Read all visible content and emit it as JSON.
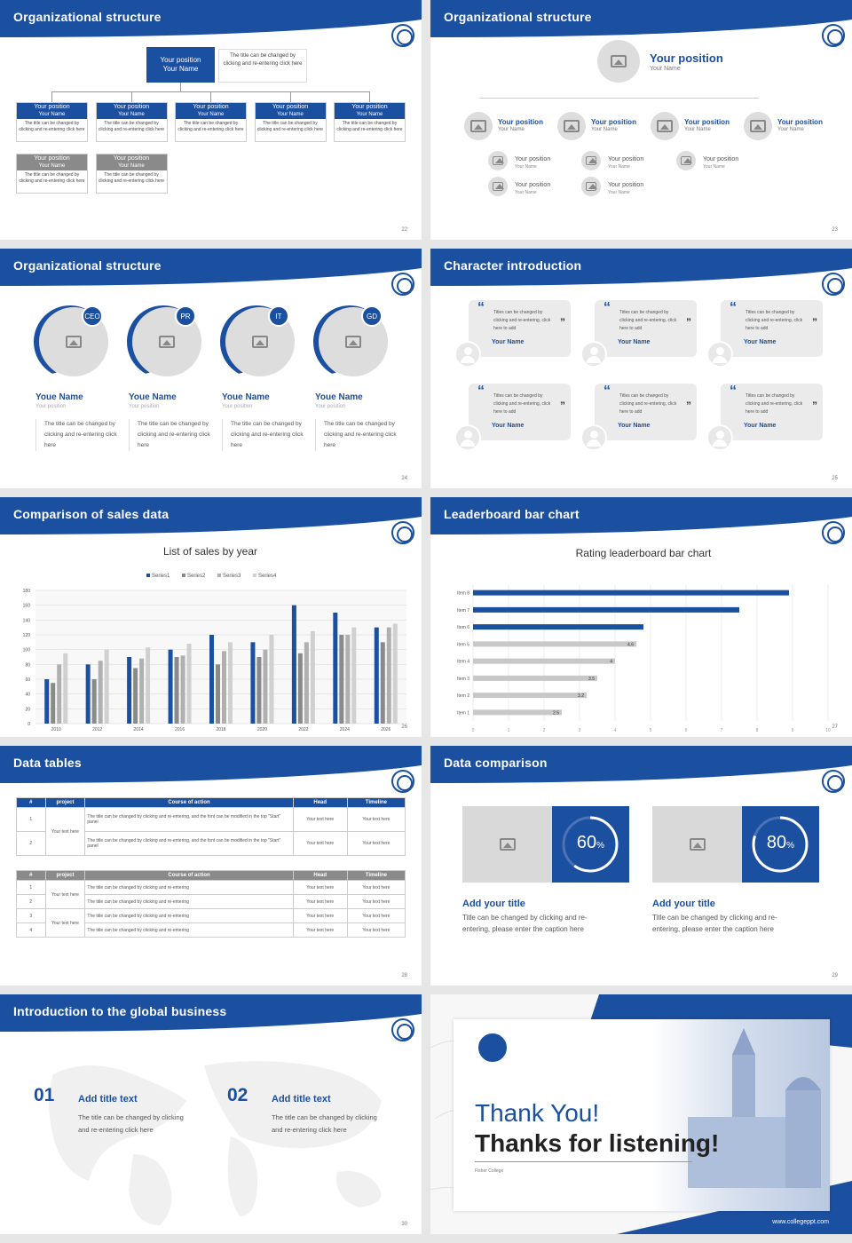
{
  "slides": {
    "s22": {
      "title": "Organizational structure",
      "page": "22",
      "top": {
        "pos": "Your position",
        "name": "Your Name",
        "desc": "The title can be changed by clicking and re-entering click here"
      },
      "cards": [
        {
          "pos": "Your position",
          "name": "Your Name",
          "desc": "The title can be changed by clicking and re-entering click here"
        },
        {
          "pos": "Your position",
          "name": "Your Name",
          "desc": "The title can be changed by clicking and re-entering click here"
        },
        {
          "pos": "Your position",
          "name": "Your Name",
          "desc": "The title can be changed by clicking and re-entering click here"
        },
        {
          "pos": "Your position",
          "name": "Your Name",
          "desc": "The title can be changed by clicking and re-entering click here"
        },
        {
          "pos": "Your position",
          "name": "Your Name",
          "desc": "The title can be changed by clicking and re-entering click here"
        },
        {
          "pos": "Your position",
          "name": "Your Name",
          "desc": "The title can be changed by clicking and re-entering click here"
        },
        {
          "pos": "Your position",
          "name": "Your Name",
          "desc": "The title can be changed by clicking and re-entering click here"
        }
      ]
    },
    "s23": {
      "title": "Organizational structure",
      "page": "23",
      "top_pos": "Your position",
      "top_name": "Your Name",
      "row": [
        {
          "pos": "Your position",
          "name": "Your Name"
        },
        {
          "pos": "Your position",
          "name": "Your Name"
        },
        {
          "pos": "Your position",
          "name": "Your Name"
        },
        {
          "pos": "Your position",
          "name": "Your Name"
        }
      ],
      "sub": [
        {
          "pos": "Your position",
          "name": "Your Name"
        },
        {
          "pos": "Your position",
          "name": "Your Name"
        },
        {
          "pos": "Your position",
          "name": "Your Name"
        },
        {
          "pos": "Your position",
          "name": "Your Name"
        },
        {
          "pos": "Your position",
          "name": "Your Name"
        }
      ]
    },
    "s24": {
      "title": "Organizational structure",
      "page": "24",
      "people": [
        {
          "badge": "CEO",
          "name": "Youe Name",
          "pos": "Your position",
          "desc": "The title can be changed by clicking and re-entering click here"
        },
        {
          "badge": "PR",
          "name": "Youe Name",
          "pos": "Your position",
          "desc": "The title can be changed by clicking and re-entering click here"
        },
        {
          "badge": "IT",
          "name": "Youe Name",
          "pos": "Your position",
          "desc": "The title can be changed by clicking and re-entering click here"
        },
        {
          "badge": "GD",
          "name": "Youe Name",
          "pos": "Your position",
          "desc": "The title can be changed by clicking and re-entering click here"
        }
      ]
    },
    "s25": {
      "title": "Character introduction",
      "page": "25",
      "quote": "Titles can be changed by clicking and re-entering, click here to add",
      "name": "Your Name"
    },
    "s26": {
      "title": "Comparison of sales data",
      "page": "26"
    },
    "s27": {
      "title": "Leaderboard bar chart",
      "page": "27"
    },
    "s28": {
      "title": "Data tables",
      "page": "28",
      "t1": {
        "head": [
          "#",
          "project",
          "Course of action",
          "Head",
          "Timeline"
        ],
        "group": "Your text here",
        "rows": [
          [
            "1",
            "The title can be changed by clicking and re-entering, and the font can be modified in the top \"Start\" panel",
            "Your text here",
            "Your text here"
          ],
          [
            "2",
            "The title can be changed by clicking and re-entering, and the font can be modified in the top \"Start\" panel",
            "Your text here",
            "Your text here"
          ]
        ]
      },
      "t2": {
        "head": [
          "#",
          "project",
          "Course of action",
          "Head",
          "Timeline"
        ],
        "group": "Your text here",
        "rows": [
          [
            "1",
            "The title can be changed by clicking and re-entering",
            "Your text here",
            "Your text here"
          ],
          [
            "2",
            "The title can be changed by clicking and re-entering",
            "Your text here",
            "Your text here"
          ],
          [
            "3",
            "The title can be changed by clicking and re-entering",
            "Your text here",
            "Your text here"
          ],
          [
            "4",
            "The title can be changed by clicking and re-entering",
            "Your text here",
            "Your text here"
          ]
        ]
      }
    },
    "s29": {
      "title": "Data comparison",
      "page": "29",
      "items": [
        {
          "pct": "60",
          "unit": "%",
          "value": 0.6,
          "title": "Add your title",
          "desc": "Title can be changed by clicking and re-entering, please enter the caption here"
        },
        {
          "pct": "80",
          "unit": "%",
          "value": 0.8,
          "title": "Add your title",
          "desc": "Title can be changed by clicking and re-entering, please enter the caption here"
        }
      ]
    },
    "s30": {
      "title": "Introduction to the global business",
      "page": "30",
      "items": [
        {
          "num": "01",
          "title": "Add title text",
          "desc": "The title can be changed by clicking and re-entering click here"
        },
        {
          "num": "02",
          "title": "Add title text",
          "desc": "The title can be changed by clicking and re-entering click here"
        }
      ]
    },
    "s31": {
      "line1": "Thank You!",
      "line2": "Thanks for listening!",
      "college": "Fisher College",
      "url": "www.collegeppt.com"
    }
  },
  "chart_data": [
    {
      "type": "bar",
      "title": "List of sales by year",
      "categories": [
        "2010",
        "2012",
        "2014",
        "2016",
        "2018",
        "2020",
        "2022",
        "2024",
        "2026"
      ],
      "ylim": [
        0,
        180
      ],
      "yticks": [
        0,
        20,
        40,
        60,
        80,
        100,
        120,
        140,
        160,
        180
      ],
      "series": [
        {
          "name": "Series1",
          "color": "#1b4fa0",
          "values": [
            60,
            80,
            90,
            100,
            120,
            110,
            160,
            150,
            130
          ]
        },
        {
          "name": "Series2",
          "color": "#8a8a8a",
          "values": [
            55,
            60,
            75,
            90,
            80,
            90,
            95,
            120,
            110
          ]
        },
        {
          "name": "Series3",
          "color": "#b0b0b0",
          "values": [
            80,
            85,
            88,
            92,
            98,
            100,
            110,
            120,
            130
          ]
        },
        {
          "name": "Series4",
          "color": "#d0d0d0",
          "values": [
            95,
            100,
            103,
            108,
            110,
            120,
            125,
            130,
            135
          ]
        }
      ],
      "legend": "top"
    },
    {
      "type": "bar",
      "orientation": "horizontal",
      "title": "Rating leaderboard bar chart",
      "categories": [
        "Item 1",
        "Item 2",
        "Item 3",
        "Item 4",
        "Item 5",
        "Item 6",
        "Item 7",
        "Item 8"
      ],
      "values": [
        2.5,
        3.2,
        3.5,
        4,
        4.6,
        4.8,
        7.5,
        8.9
      ],
      "labels": [
        "2.5",
        "3.2",
        "3.5",
        "4",
        "4.6",
        "",
        "",
        ""
      ],
      "highlight": [
        false,
        false,
        false,
        false,
        false,
        true,
        true,
        true
      ],
      "xlim": [
        0,
        10
      ],
      "xticks": [
        0,
        1,
        2,
        3,
        4,
        5,
        6,
        7,
        8,
        9,
        10
      ]
    }
  ],
  "colors": {
    "accent": "#1b4fa0",
    "gray": "#8a8a8a",
    "light": "#d9d9d9"
  }
}
